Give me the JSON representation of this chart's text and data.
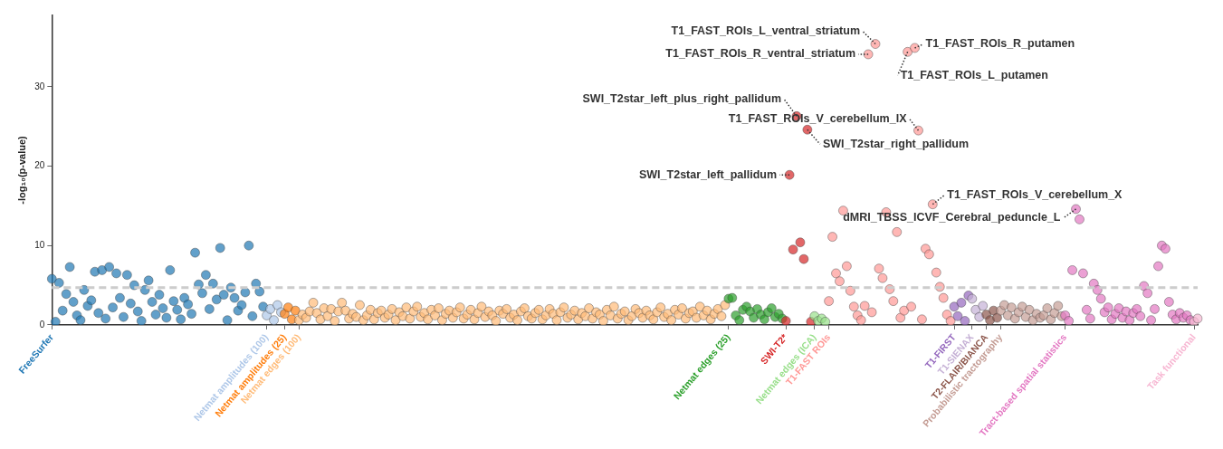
{
  "chart_data": {
    "type": "scatter",
    "ylabel": "-log₁₀(p-value)",
    "ylim": [
      0,
      39
    ],
    "yticks": [
      0,
      10,
      20,
      30
    ],
    "marker": "circle",
    "grid": false,
    "legend": false,
    "ref_lines": [
      {
        "axis": "y",
        "value": 4.7,
        "color": "#cccccc",
        "line_style": "dashed"
      }
    ],
    "categories": [
      "FreeSurfer",
      null,
      null,
      null,
      null,
      null,
      null,
      null,
      null,
      null,
      null,
      null,
      null,
      null,
      null,
      null,
      null,
      null,
      null,
      null,
      null,
      null,
      null,
      null,
      null,
      null,
      null,
      null,
      null,
      null,
      null,
      null,
      null,
      null,
      null,
      null,
      null,
      null,
      null,
      null,
      null,
      null,
      null,
      null,
      null,
      null,
      null,
      null,
      null,
      null,
      null,
      null,
      null,
      null,
      null,
      null,
      null,
      null,
      null,
      null,
      "Netmat amplitudes (100)",
      null,
      null,
      null,
      null,
      "Netmat amplitudes (25)",
      null,
      null,
      null,
      "Netmat edges (100)",
      null,
      null,
      null,
      null,
      null,
      null,
      null,
      null,
      null,
      null,
      null,
      null,
      null,
      null,
      null,
      null,
      null,
      null,
      null,
      null,
      null,
      null,
      null,
      null,
      null,
      null,
      null,
      null,
      null,
      null,
      null,
      null,
      null,
      null,
      null,
      null,
      null,
      null,
      null,
      null,
      null,
      null,
      null,
      null,
      null,
      null,
      null,
      null,
      null,
      null,
      null,
      null,
      null,
      null,
      null,
      null,
      null,
      null,
      null,
      null,
      null,
      null,
      null,
      null,
      null,
      null,
      null,
      null,
      null,
      null,
      null,
      null,
      null,
      null,
      null,
      null,
      null,
      null,
      null,
      null,
      null,
      null,
      null,
      null,
      null,
      null,
      null,
      null,
      null,
      null,
      null,
      null,
      null,
      null,
      null,
      null,
      null,
      null,
      null,
      null,
      null,
      null,
      null,
      null,
      null,
      null,
      null,
      null,
      null,
      null,
      null,
      null,
      null,
      null,
      null,
      null,
      null,
      null,
      null,
      "Netmat edges (25)",
      null,
      null,
      null,
      null,
      null,
      null,
      null,
      null,
      null,
      null,
      null,
      null,
      null,
      null,
      null,
      "SWI-T2*",
      null,
      null,
      null,
      null,
      null,
      null,
      null,
      "Netmat edges (ICA)",
      null,
      null,
      null,
      "T1-FAST ROIs",
      null,
      null,
      null,
      null,
      null,
      null,
      null,
      null,
      null,
      null,
      null,
      null,
      null,
      null,
      null,
      null,
      null,
      null,
      null,
      null,
      null,
      null,
      null,
      null,
      null,
      null,
      null,
      null,
      null,
      null,
      null,
      null,
      null,
      null,
      "T1-FIRST",
      null,
      null,
      null,
      null,
      "T1-SIENAX",
      null,
      null,
      null,
      "T2-FLAIR/BIANCA",
      null,
      null,
      null,
      "Probabilistic tractography",
      null,
      null,
      null,
      null,
      null,
      null,
      null,
      null,
      null,
      null,
      null,
      null,
      null,
      null,
      null,
      null,
      null,
      "Tract-based spatial statistics",
      null,
      null,
      null,
      null,
      null,
      null,
      null,
      null,
      null,
      null,
      null,
      null,
      null,
      null,
      null,
      null,
      null,
      null,
      null,
      null,
      null,
      null,
      null,
      null,
      null,
      null,
      null,
      null,
      null,
      null,
      null,
      null,
      null,
      null,
      null,
      "Task functional",
      null
    ],
    "values": [
      5.8,
      0.4,
      5.3,
      1.8,
      3.9,
      7.3,
      2.9,
      1.2,
      0.6,
      4.4,
      2.4,
      3.1,
      6.7,
      1.5,
      6.9,
      0.8,
      7.3,
      2.2,
      6.5,
      3.4,
      1.0,
      6.3,
      2.7,
      5.0,
      1.7,
      0.5,
      4.4,
      5.6,
      2.9,
      1.3,
      3.8,
      2.1,
      0.9,
      6.9,
      3.0,
      1.9,
      0.7,
      3.4,
      2.6,
      1.4,
      9.1,
      5.1,
      4.0,
      6.3,
      2.0,
      5.2,
      3.2,
      9.7,
      3.8,
      0.6,
      4.7,
      3.4,
      1.8,
      2.5,
      4.1,
      10.0,
      1.1,
      5.2,
      4.2,
      2.3,
      1.2,
      2.0,
      0.6,
      2.5,
      1.6,
      1.4,
      2.2,
      0.7,
      1.8,
      0.6,
      1.3,
      0.9,
      1.7,
      2.8,
      1.5,
      0.7,
      2.1,
      1.1,
      2.0,
      0.5,
      1.7,
      2.8,
      1.8,
      0.8,
      1.4,
      1.0,
      2.5,
      0.6,
      1.2,
      1.9,
      0.7,
      1.5,
      1.8,
      0.9,
      1.3,
      2.0,
      0.6,
      1.6,
      1.1,
      2.2,
      0.8,
      1.7,
      2.3,
      1.0,
      1.5,
      0.7,
      1.9,
      1.2,
      2.1,
      0.6,
      1.4,
      1.8,
      0.9,
      1.6,
      2.2,
      0.8,
      1.3,
      1.9,
      0.7,
      1.5,
      2.3,
      1.0,
      1.7,
      1.2,
      0.5,
      1.8,
      1.4,
      2.0,
      0.9,
      1.3,
      0.6,
      1.7,
      2.1,
      1.1,
      0.8,
      1.5,
      1.9,
      0.7,
      1.2,
      2.0,
      1.4,
      0.6,
      1.6,
      2.2,
      0.9,
      1.3,
      1.8,
      0.7,
      1.5,
      1.1,
      2.1,
      0.8,
      1.6,
      1.3,
      0.5,
      1.9,
      1.2,
      2.3,
      0.8,
      1.4,
      1.7,
      0.6,
      1.1,
      2.0,
      1.5,
      0.9,
      1.8,
      1.2,
      0.7,
      1.6,
      2.2,
      1.0,
      1.4,
      0.6,
      1.9,
      1.3,
      2.1,
      0.8,
      1.5,
      1.7,
      0.9,
      2.3,
      1.2,
      1.8,
      0.7,
      1.4,
      2.0,
      1.1,
      2.5,
      3.3,
      3.4,
      1.2,
      0.6,
      1.9,
      2.3,
      1.7,
      0.9,
      2.0,
      1.3,
      0.7,
      1.6,
      2.1,
      1.0,
      1.4,
      0.8,
      0.5,
      18.9,
      9.5,
      26.3,
      10.4,
      8.3,
      24.6,
      0.4,
      1.1,
      0.5,
      0.8,
      0.4,
      3.0,
      11.1,
      6.5,
      5.5,
      14.4,
      7.4,
      4.3,
      2.3,
      1.2,
      0.6,
      2.4,
      34.1,
      1.6,
      35.4,
      7.1,
      5.9,
      14.2,
      4.5,
      3.0,
      11.7,
      0.9,
      1.8,
      34.4,
      2.3,
      34.9,
      24.5,
      0.7,
      9.6,
      8.9,
      15.2,
      6.6,
      4.8,
      3.4,
      1.3,
      0.5,
      2.3,
      1.1,
      2.8,
      0.5,
      3.7,
      3.3,
      1.9,
      1.0,
      2.4,
      1.3,
      0.6,
      1.8,
      0.9,
      1.8,
      2.5,
      1.2,
      2.2,
      0.8,
      1.6,
      2.3,
      1.0,
      1.9,
      0.6,
      1.4,
      0.9,
      1.2,
      2.1,
      0.7,
      1.5,
      2.4,
      1.1,
      1.2,
      0.5,
      6.9,
      14.6,
      13.3,
      6.5,
      1.9,
      0.8,
      5.2,
      4.4,
      3.3,
      1.6,
      2.2,
      0.7,
      1.4,
      2.1,
      0.9,
      1.7,
      0.6,
      1.5,
      2.0,
      1.1,
      4.9,
      4.0,
      0.6,
      2.0,
      7.4,
      10.0,
      9.6,
      2.9,
      1.3,
      0.7,
      1.5,
      0.9,
      1.2,
      0.6,
      0.4,
      0.8
    ],
    "value_labels": [
      null,
      null,
      null,
      null,
      null,
      null,
      null,
      null,
      null,
      null,
      null,
      null,
      null,
      null,
      null,
      null,
      null,
      null,
      null,
      null,
      null,
      null,
      null,
      null,
      null,
      null,
      null,
      null,
      null,
      null,
      null,
      null,
      null,
      null,
      null,
      null,
      null,
      null,
      null,
      null,
      null,
      null,
      null,
      null,
      null,
      null,
      null,
      null,
      null,
      null,
      null,
      null,
      null,
      null,
      null,
      null,
      null,
      null,
      null,
      null,
      null,
      null,
      null,
      null,
      null,
      null,
      null,
      null,
      null,
      null,
      null,
      null,
      null,
      null,
      null,
      null,
      null,
      null,
      null,
      null,
      null,
      null,
      null,
      null,
      null,
      null,
      null,
      null,
      null,
      null,
      null,
      null,
      null,
      null,
      null,
      null,
      null,
      null,
      null,
      null,
      null,
      null,
      null,
      null,
      null,
      null,
      null,
      null,
      null,
      null,
      null,
      null,
      null,
      null,
      null,
      null,
      null,
      null,
      null,
      null,
      null,
      null,
      null,
      null,
      null,
      null,
      null,
      null,
      null,
      null,
      null,
      null,
      null,
      null,
      null,
      null,
      null,
      null,
      null,
      null,
      null,
      null,
      null,
      null,
      null,
      null,
      null,
      null,
      null,
      null,
      null,
      null,
      null,
      null,
      null,
      null,
      null,
      null,
      null,
      null,
      null,
      null,
      null,
      null,
      null,
      null,
      null,
      null,
      null,
      null,
      null,
      null,
      null,
      null,
      null,
      null,
      null,
      null,
      null,
      null,
      null,
      null,
      null,
      null,
      null,
      null,
      null,
      null,
      null,
      null,
      null,
      null,
      null,
      null,
      null,
      null,
      null,
      null,
      null,
      null,
      null,
      null,
      null,
      null,
      null,
      null,
      "SWI_T2star_left_pallidum",
      null,
      "SWI_T2star_left_plus_right_pallidum",
      null,
      null,
      "SWI_T2star_right_pallidum",
      null,
      null,
      null,
      null,
      null,
      null,
      null,
      null,
      null,
      null,
      null,
      null,
      null,
      null,
      null,
      null,
      "T1_FAST_ROIs_R_ventral_striatum",
      null,
      "T1_FAST_ROIs_L_ventral_striatum",
      null,
      null,
      null,
      null,
      null,
      null,
      null,
      null,
      "T1_FAST_ROIs_L_putamen",
      null,
      "T1_FAST_ROIs_R_putamen",
      "T1_FAST_ROIs_V_cerebellum_IX",
      null,
      null,
      null,
      "T1_FAST_ROIs_V_cerebellum_X",
      null,
      null,
      null,
      null,
      null,
      null,
      null,
      null,
      null,
      null,
      null,
      null,
      null,
      null,
      null,
      null,
      null,
      null,
      null,
      null,
      null,
      null,
      null,
      null,
      null,
      null,
      null,
      null,
      null,
      null,
      null,
      null,
      null,
      null,
      null,
      null,
      null,
      null,
      null,
      "dMRI_TBSS_ICVF_Cerebral_peduncle_L",
      null,
      null,
      null,
      null,
      null,
      null,
      null,
      null,
      null,
      null,
      null,
      null,
      null,
      null,
      null,
      null,
      null,
      null,
      null,
      null,
      null,
      null,
      null,
      null,
      null,
      null,
      null,
      null,
      null,
      null,
      null,
      null,
      null,
      null
    ],
    "colors": [
      "#1f77b4",
      "#1f77b4",
      "#1f77b4",
      "#1f77b4",
      "#1f77b4",
      "#1f77b4",
      "#1f77b4",
      "#1f77b4",
      "#1f77b4",
      "#1f77b4",
      "#1f77b4",
      "#1f77b4",
      "#1f77b4",
      "#1f77b4",
      "#1f77b4",
      "#1f77b4",
      "#1f77b4",
      "#1f77b4",
      "#1f77b4",
      "#1f77b4",
      "#1f77b4",
      "#1f77b4",
      "#1f77b4",
      "#1f77b4",
      "#1f77b4",
      "#1f77b4",
      "#1f77b4",
      "#1f77b4",
      "#1f77b4",
      "#1f77b4",
      "#1f77b4",
      "#1f77b4",
      "#1f77b4",
      "#1f77b4",
      "#1f77b4",
      "#1f77b4",
      "#1f77b4",
      "#1f77b4",
      "#1f77b4",
      "#1f77b4",
      "#1f77b4",
      "#1f77b4",
      "#1f77b4",
      "#1f77b4",
      "#1f77b4",
      "#1f77b4",
      "#1f77b4",
      "#1f77b4",
      "#1f77b4",
      "#1f77b4",
      "#1f77b4",
      "#1f77b4",
      "#1f77b4",
      "#1f77b4",
      "#1f77b4",
      "#1f77b4",
      "#1f77b4",
      "#1f77b4",
      "#1f77b4",
      "#1f77b4",
      "#aec7e8",
      "#aec7e8",
      "#aec7e8",
      "#aec7e8",
      "#aec7e8",
      "#ff7f0e",
      "#ff7f0e",
      "#ff7f0e",
      "#ff7f0e",
      "#ffbb78",
      "#ffbb78",
      "#ffbb78",
      "#ffbb78",
      "#ffbb78",
      "#ffbb78",
      "#ffbb78",
      "#ffbb78",
      "#ffbb78",
      "#ffbb78",
      "#ffbb78",
      "#ffbb78",
      "#ffbb78",
      "#ffbb78",
      "#ffbb78",
      "#ffbb78",
      "#ffbb78",
      "#ffbb78",
      "#ffbb78",
      "#ffbb78",
      "#ffbb78",
      "#ffbb78",
      "#ffbb78",
      "#ffbb78",
      "#ffbb78",
      "#ffbb78",
      "#ffbb78",
      "#ffbb78",
      "#ffbb78",
      "#ffbb78",
      "#ffbb78",
      "#ffbb78",
      "#ffbb78",
      "#ffbb78",
      "#ffbb78",
      "#ffbb78",
      "#ffbb78",
      "#ffbb78",
      "#ffbb78",
      "#ffbb78",
      "#ffbb78",
      "#ffbb78",
      "#ffbb78",
      "#ffbb78",
      "#ffbb78",
      "#ffbb78",
      "#ffbb78",
      "#ffbb78",
      "#ffbb78",
      "#ffbb78",
      "#ffbb78",
      "#ffbb78",
      "#ffbb78",
      "#ffbb78",
      "#ffbb78",
      "#ffbb78",
      "#ffbb78",
      "#ffbb78",
      "#ffbb78",
      "#ffbb78",
      "#ffbb78",
      "#ffbb78",
      "#ffbb78",
      "#ffbb78",
      "#ffbb78",
      "#ffbb78",
      "#ffbb78",
      "#ffbb78",
      "#ffbb78",
      "#ffbb78",
      "#ffbb78",
      "#ffbb78",
      "#ffbb78",
      "#ffbb78",
      "#ffbb78",
      "#ffbb78",
      "#ffbb78",
      "#ffbb78",
      "#ffbb78",
      "#ffbb78",
      "#ffbb78",
      "#ffbb78",
      "#ffbb78",
      "#ffbb78",
      "#ffbb78",
      "#ffbb78",
      "#ffbb78",
      "#ffbb78",
      "#ffbb78",
      "#ffbb78",
      "#ffbb78",
      "#ffbb78",
      "#ffbb78",
      "#ffbb78",
      "#ffbb78",
      "#ffbb78",
      "#ffbb78",
      "#ffbb78",
      "#ffbb78",
      "#ffbb78",
      "#ffbb78",
      "#ffbb78",
      "#ffbb78",
      "#ffbb78",
      "#ffbb78",
      "#ffbb78",
      "#ffbb78",
      "#ffbb78",
      "#ffbb78",
      "#ffbb78",
      "#ffbb78",
      "#ffbb78",
      "#ffbb78",
      "#ffbb78",
      "#ffbb78",
      "#ffbb78",
      "#ffbb78",
      "#ffbb78",
      "#ffbb78",
      "#ffbb78",
      "#2ca02c",
      "#2ca02c",
      "#2ca02c",
      "#2ca02c",
      "#2ca02c",
      "#2ca02c",
      "#2ca02c",
      "#2ca02c",
      "#2ca02c",
      "#2ca02c",
      "#2ca02c",
      "#2ca02c",
      "#2ca02c",
      "#2ca02c",
      "#2ca02c",
      "#2ca02c",
      "#d62728",
      "#d62728",
      "#d62728",
      "#d62728",
      "#d62728",
      "#d62728",
      "#d62728",
      "#d62728",
      "#98df8a",
      "#98df8a",
      "#98df8a",
      "#98df8a",
      "#ff9896",
      "#ff9896",
      "#ff9896",
      "#ff9896",
      "#ff9896",
      "#ff9896",
      "#ff9896",
      "#ff9896",
      "#ff9896",
      "#ff9896",
      "#ff9896",
      "#ff9896",
      "#ff9896",
      "#ff9896",
      "#ff9896",
      "#ff9896",
      "#ff9896",
      "#ff9896",
      "#ff9896",
      "#ff9896",
      "#ff9896",
      "#ff9896",
      "#ff9896",
      "#ff9896",
      "#ff9896",
      "#ff9896",
      "#ff9896",
      "#ff9896",
      "#ff9896",
      "#ff9896",
      "#ff9896",
      "#ff9896",
      "#ff9896",
      "#ff9896",
      "#ff9896",
      "#9467bd",
      "#9467bd",
      "#9467bd",
      "#9467bd",
      "#9467bd",
      "#c5b0d5",
      "#c5b0d5",
      "#c5b0d5",
      "#c5b0d5",
      "#8c564b",
      "#8c564b",
      "#8c564b",
      "#8c564b",
      "#c49c94",
      "#c49c94",
      "#c49c94",
      "#c49c94",
      "#c49c94",
      "#c49c94",
      "#c49c94",
      "#c49c94",
      "#c49c94",
      "#c49c94",
      "#c49c94",
      "#c49c94",
      "#c49c94",
      "#c49c94",
      "#c49c94",
      "#c49c94",
      "#c49c94",
      "#c49c94",
      "#e377c2",
      "#e377c2",
      "#e377c2",
      "#e377c2",
      "#e377c2",
      "#e377c2",
      "#e377c2",
      "#e377c2",
      "#e377c2",
      "#e377c2",
      "#e377c2",
      "#e377c2",
      "#e377c2",
      "#e377c2",
      "#e377c2",
      "#e377c2",
      "#e377c2",
      "#e377c2",
      "#e377c2",
      "#e377c2",
      "#e377c2",
      "#e377c2",
      "#e377c2",
      "#e377c2",
      "#e377c2",
      "#e377c2",
      "#e377c2",
      "#e377c2",
      "#e377c2",
      "#e377c2",
      "#e377c2",
      "#e377c2",
      "#e377c2",
      "#e377c2",
      "#e377c2",
      "#e377c2",
      "#f7b6d2",
      "#f7b6d2"
    ]
  }
}
